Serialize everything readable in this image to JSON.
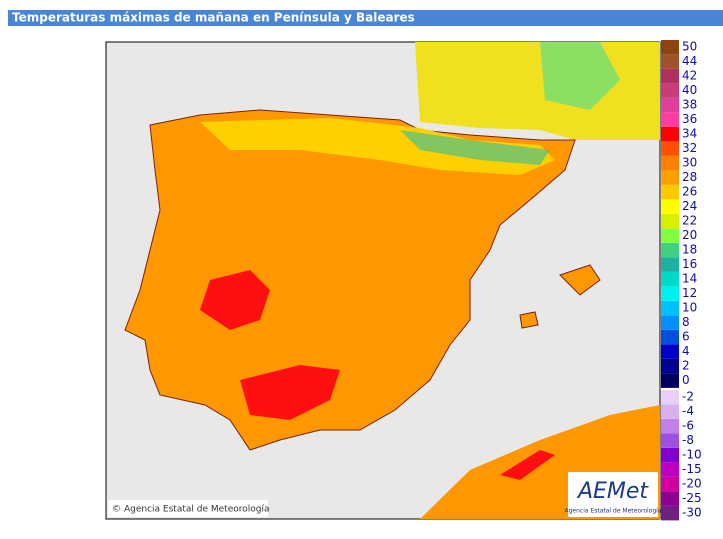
{
  "header": {
    "title": "Temperaturas máximas de mañana en Península y Baleares"
  },
  "credit": "Agencia Estatal de Meteorología",
  "logo": {
    "name": "AEMet",
    "subtitle": "Agencia Estatal de Meteorología"
  },
  "legend": [
    {
      "value": 50,
      "color": "#8b4513"
    },
    {
      "value": 44,
      "color": "#a0522d"
    },
    {
      "value": 42,
      "color": "#b03060"
    },
    {
      "value": 40,
      "color": "#c83c78"
    },
    {
      "value": 38,
      "color": "#e0409a"
    },
    {
      "value": 36,
      "color": "#ff3ca0"
    },
    {
      "value": 34,
      "color": "#ff0000"
    },
    {
      "value": 32,
      "color": "#ff5000"
    },
    {
      "value": 30,
      "color": "#ff8000"
    },
    {
      "value": 28,
      "color": "#ffa000"
    },
    {
      "value": 26,
      "color": "#ffc800"
    },
    {
      "value": 24,
      "color": "#ffff00"
    },
    {
      "value": 22,
      "color": "#d8f000"
    },
    {
      "value": 20,
      "color": "#80ff40"
    },
    {
      "value": 18,
      "color": "#40d080"
    },
    {
      "value": 16,
      "color": "#20b0a0"
    },
    {
      "value": 14,
      "color": "#00d8c8"
    },
    {
      "value": 12,
      "color": "#00f0f0"
    },
    {
      "value": 10,
      "color": "#00c0ff"
    },
    {
      "value": 8,
      "color": "#0090ff"
    },
    {
      "value": 6,
      "color": "#0050e0"
    },
    {
      "value": 4,
      "color": "#0000c8"
    },
    {
      "value": 2,
      "color": "#000090"
    },
    {
      "value": 0,
      "color": "#000060"
    },
    {
      "value": -2,
      "color": "#e8d0f8"
    },
    {
      "value": -4,
      "color": "#d8b0f0"
    },
    {
      "value": -6,
      "color": "#c080e8"
    },
    {
      "value": -8,
      "color": "#a050e0"
    },
    {
      "value": -10,
      "color": "#8000d0"
    },
    {
      "value": -15,
      "color": "#c000c0"
    },
    {
      "value": -20,
      "color": "#d000a0"
    },
    {
      "value": -25,
      "color": "#900090"
    },
    {
      "value": -30,
      "color": "#702080"
    }
  ]
}
